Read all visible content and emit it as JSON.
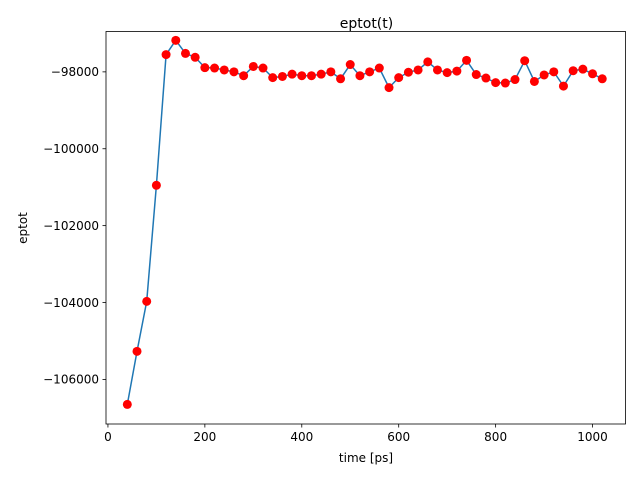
{
  "chart_data": {
    "type": "line",
    "title": "eptot(t)",
    "xlabel": "time [ps]",
    "ylabel": "eptot",
    "xlim": [
      -4,
      1068
    ],
    "ylim": [
      -107160,
      -96950
    ],
    "xticks": [
      0,
      200,
      400,
      600,
      800,
      1000
    ],
    "xtick_labels": [
      "0",
      "200",
      "400",
      "600",
      "800",
      "1000"
    ],
    "yticks": [
      -106000,
      -104000,
      -102000,
      -100000,
      -98000
    ],
    "ytick_labels": [
      "−106000",
      "−104000",
      "−102000",
      "−100000",
      "−98000"
    ],
    "grid": false,
    "line_color": "#1f77b4",
    "marker_color": "#ff0000",
    "x": [
      40,
      60,
      80,
      100,
      120,
      140,
      160,
      180,
      200,
      220,
      240,
      260,
      280,
      300,
      320,
      340,
      360,
      380,
      400,
      420,
      440,
      460,
      480,
      500,
      520,
      540,
      560,
      580,
      600,
      620,
      640,
      660,
      680,
      700,
      720,
      740,
      760,
      780,
      800,
      820,
      840,
      860,
      880,
      900,
      920,
      940,
      960,
      980,
      1000,
      1020
    ],
    "y": [
      -106650,
      -105270,
      -103970,
      -100950,
      -97550,
      -97180,
      -97520,
      -97620,
      -97890,
      -97900,
      -97950,
      -98000,
      -98100,
      -97860,
      -97900,
      -98150,
      -98120,
      -98060,
      -98100,
      -98100,
      -98060,
      -98000,
      -98180,
      -97810,
      -98100,
      -98000,
      -97900,
      -98410,
      -98150,
      -98010,
      -97950,
      -97740,
      -97950,
      -98020,
      -97980,
      -97700,
      -98070,
      -98160,
      -98280,
      -98290,
      -98200,
      -97710,
      -98250,
      -98080,
      -98000,
      -98370,
      -97970,
      -97930,
      -98050,
      -98180
    ]
  }
}
